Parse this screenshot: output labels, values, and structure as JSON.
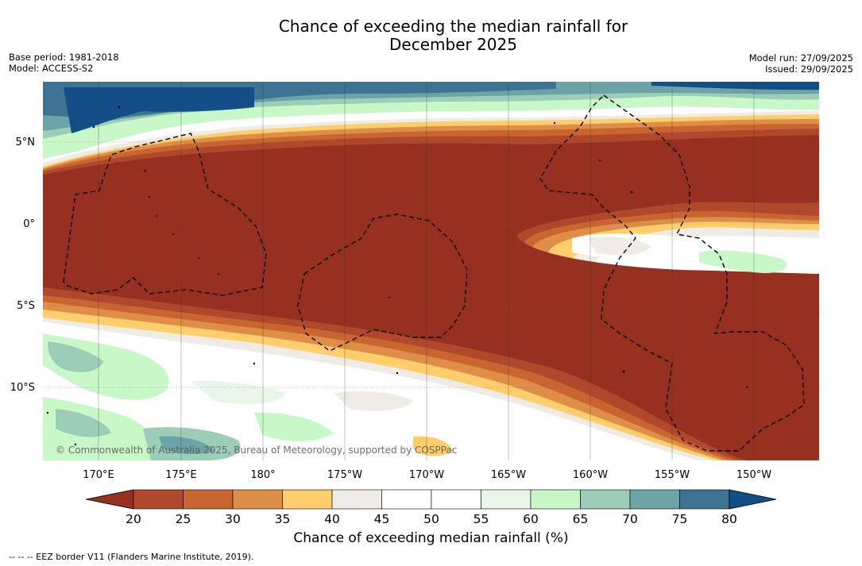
{
  "title": "Chance of exceeding the median rainfall for December 2025",
  "title_line1": "Chance of exceeding the median rainfall for",
  "title_line2": "December 2025",
  "base_period": "Base period: 1981-2018",
  "model": "Model: ACCESS-S2",
  "model_run": "Model run: 27/09/2025",
  "issued": "Issued: 29/09/2025",
  "copyright": "© Commonwealth of Australia 2025, Bureau of Meteorology, supported by COSPPac",
  "lat_labels": [
    "5°N",
    "0°",
    "5°S",
    "10°S"
  ],
  "lon_labels": [
    "170°E",
    "175°E",
    "180°",
    "175°W",
    "170°W",
    "165°W",
    "160°W",
    "155°W",
    "150°W"
  ],
  "colorbar": {
    "title": "Chance of exceeding median rainfall (%)",
    "ticks": [
      "20",
      "25",
      "30",
      "35",
      "40",
      "45",
      "50",
      "55",
      "60",
      "65",
      "70",
      "75",
      "80"
    ],
    "colors": [
      "#963121",
      "#b0482b",
      "#c96531",
      "#de8e46",
      "#fece6c",
      "#efece6",
      "#ffffff",
      "#ffffff",
      "#e8f5e9",
      "#c8f8c8",
      "#9ccdb7",
      "#6ba3a7",
      "#3e7393",
      "#134e86"
    ]
  },
  "eez_note": "--  --  -- EEZ border V11 (Flanders Marine Institute, 2019)."
}
